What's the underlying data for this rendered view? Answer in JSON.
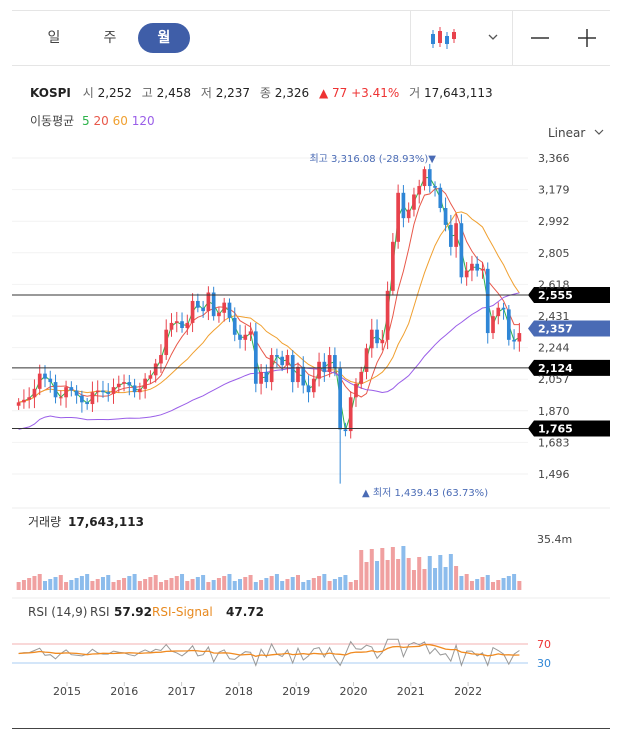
{
  "toolbar": {
    "periods": [
      {
        "label": "일",
        "active": false
      },
      {
        "label": "주",
        "active": false
      },
      {
        "label": "월",
        "active": true
      }
    ],
    "chart_type_icon": "candlestick-icon",
    "zoom_out_icon": "minus-icon",
    "zoom_in_icon": "plus-icon"
  },
  "quote": {
    "symbol": "KOSPI",
    "open_label": "시",
    "open": "2,252",
    "high_label": "고",
    "high": "2,458",
    "low_label": "저",
    "low": "2,237",
    "close_label": "종",
    "close": "2,326",
    "change": "▲ 77 +3.41%",
    "volume_label": "거",
    "volume": "17,643,113"
  },
  "ma_legend": {
    "label": "이동평균",
    "items": [
      {
        "label": "5",
        "color": "#2db34a"
      },
      {
        "label": "20",
        "color": "#e8584a"
      },
      {
        "label": "60",
        "color": "#f0a030"
      },
      {
        "label": "120",
        "color": "#9a5ee8"
      }
    ]
  },
  "scale": {
    "label": "Linear"
  },
  "colors": {
    "up": "#e8424c",
    "down": "#2f86d6",
    "vol_up": "#f0a0a0",
    "vol_down": "#8cbcec",
    "badge_dark": "#000000",
    "badge_blue": "#4a6bb5",
    "annot": "#4a6bb5"
  },
  "chart_data": {
    "type": "candlestick",
    "price_axis": {
      "ticks": [
        "3,366",
        "3,179",
        "2,992",
        "2,805",
        "2,618",
        "2,431",
        "2,244",
        "2,057",
        "1,870",
        "1,683",
        "1,496"
      ],
      "range": [
        1400,
        3400
      ]
    },
    "x_axis": {
      "labels": [
        "2015",
        "2016",
        "2017",
        "2018",
        "2019",
        "2020",
        "2021",
        "2022"
      ]
    },
    "annotations": {
      "high": "최고 3,316.08 (-28.93%)",
      "low": "최저 1,439.43 (63.73%)"
    },
    "horizontal_lines": [
      {
        "value": 2555,
        "label": "2,555"
      },
      {
        "value": 2124,
        "label": "2,124"
      },
      {
        "value": 1765,
        "label": "1,765"
      }
    ],
    "current_price_label": {
      "value": 2357,
      "label": "2,357"
    },
    "monthly_close": [
      1920,
      1935,
      1950,
      2000,
      2090,
      2060,
      2040,
      1950,
      1950,
      2010,
      1990,
      1960,
      1920,
      1910,
      1980,
      1990,
      1980,
      1970,
      2010,
      2030,
      2040,
      2020,
      1980,
      2000,
      2060,
      2080,
      2150,
      2200,
      2350,
      2390,
      2400,
      2360,
      2390,
      2520,
      2480,
      2460,
      2570,
      2430,
      2450,
      2510,
      2420,
      2320,
      2290,
      2320,
      2340,
      2030,
      2100,
      2040,
      2200,
      2190,
      2140,
      2200,
      2040,
      2130,
      2020,
      1980,
      2060,
      2160,
      2100,
      2200,
      2120,
      1760,
      1750,
      1950,
      2030,
      2100,
      2240,
      2350,
      2270,
      2290,
      2580,
      2870,
      3160,
      3010,
      3060,
      3150,
      3200,
      3300,
      3200,
      3190,
      3070,
      2970,
      2840,
      2980,
      2660,
      2700,
      2740,
      2700,
      2710,
      2330,
      2430,
      2480,
      2470,
      2290,
      2280,
      2330
    ],
    "ma": [
      {
        "name": "5",
        "color": "#2db34a"
      },
      {
        "name": "20",
        "color": "#e8584a"
      },
      {
        "name": "60",
        "color": "#f0a030"
      },
      {
        "name": "120",
        "color": "#9a5ee8"
      }
    ],
    "volume": {
      "label": "거래량",
      "value": "17,643,113",
      "axis_label": "35.4m"
    },
    "rsi": {
      "label": "RSI (14,9)",
      "rsi_label": "RSI",
      "rsi_value": "57.92",
      "signal_label": "RSI-Signal",
      "signal_value": "47.72",
      "levels": [
        {
          "value": 70,
          "label": "70"
        },
        {
          "value": 30,
          "label": "30"
        }
      ]
    }
  }
}
